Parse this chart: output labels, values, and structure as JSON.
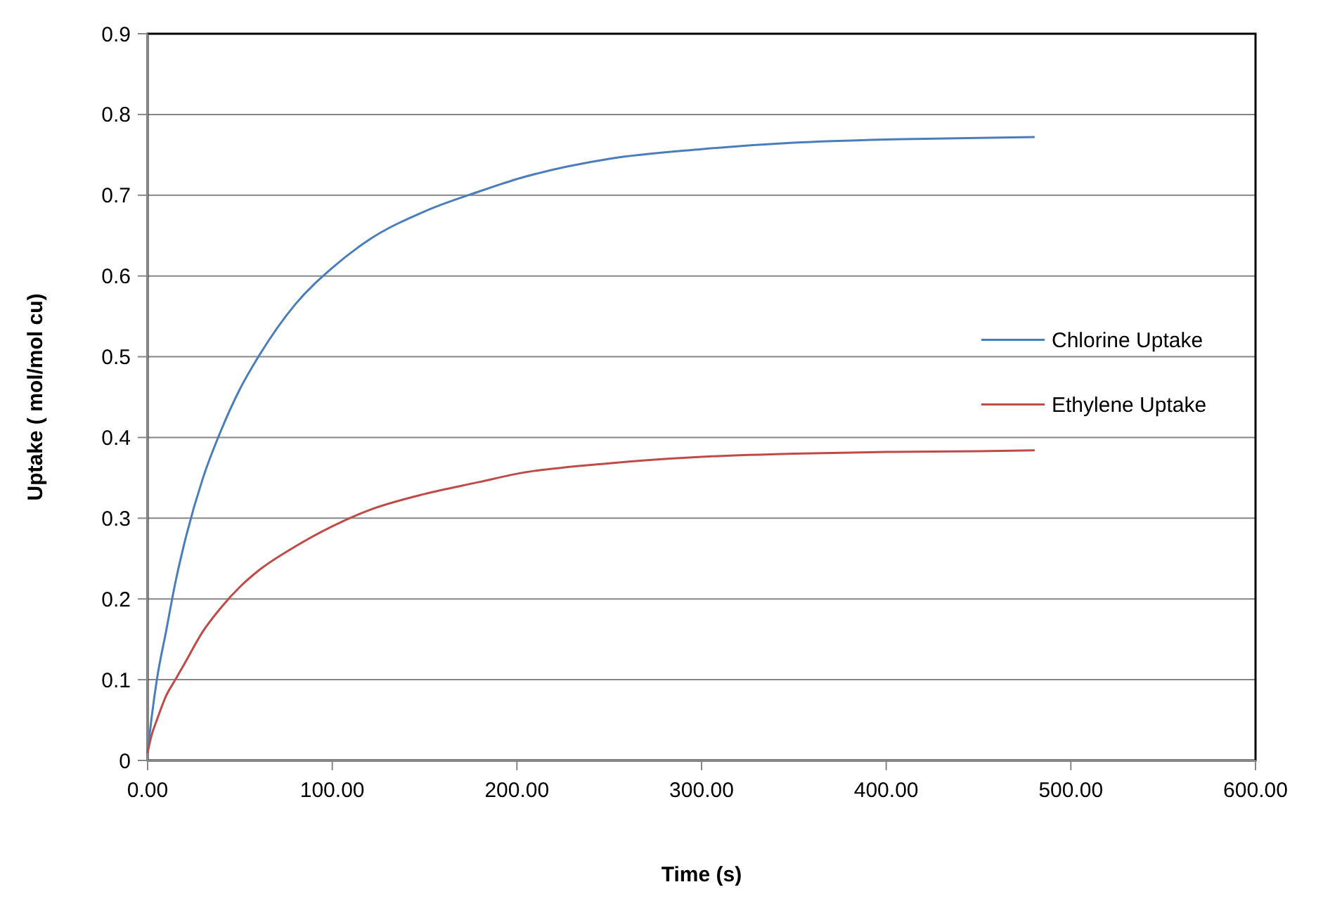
{
  "chart_data": {
    "type": "line",
    "xlabel": "Time (s)",
    "ylabel": "Uptake (  mol/mol cu)",
    "x": [
      0,
      2,
      5,
      10,
      15,
      20,
      30,
      40,
      50,
      60,
      80,
      100,
      120,
      150,
      180,
      200,
      250,
      300,
      350,
      400,
      450,
      480
    ],
    "series": [
      {
        "name": "Chlorine Uptake",
        "color": "#4a7ebb",
        "values": [
          0.01,
          0.05,
          0.1,
          0.16,
          0.22,
          0.27,
          0.35,
          0.41,
          0.46,
          0.5,
          0.565,
          0.61,
          0.645,
          0.68,
          0.705,
          0.72,
          0.745,
          0.757,
          0.765,
          0.769,
          0.771,
          0.772
        ]
      },
      {
        "name": "Ethylene Uptake",
        "color": "#be4b48",
        "values": [
          0.01,
          0.03,
          0.05,
          0.08,
          0.1,
          0.12,
          0.16,
          0.19,
          0.215,
          0.235,
          0.265,
          0.29,
          0.31,
          0.33,
          0.345,
          0.355,
          0.368,
          0.376,
          0.38,
          0.382,
          0.383,
          0.384
        ]
      }
    ],
    "xlim": [
      0,
      600
    ],
    "xticks": [
      {
        "value": 0,
        "label": "0.00"
      },
      {
        "value": 100,
        "label": "100.00"
      },
      {
        "value": 200,
        "label": "200.00"
      },
      {
        "value": 300,
        "label": "300.00"
      },
      {
        "value": 400,
        "label": "400.00"
      },
      {
        "value": 500,
        "label": "500.00"
      },
      {
        "value": 600,
        "label": "600.00"
      }
    ],
    "ylim": [
      0,
      0.9
    ],
    "yticks": [
      0,
      0.1,
      0.2,
      0.3,
      0.4,
      0.5,
      0.6,
      0.7,
      0.8,
      0.9
    ],
    "grid": "y",
    "legend": "right",
    "marker": "none",
    "line_style": "solid"
  }
}
